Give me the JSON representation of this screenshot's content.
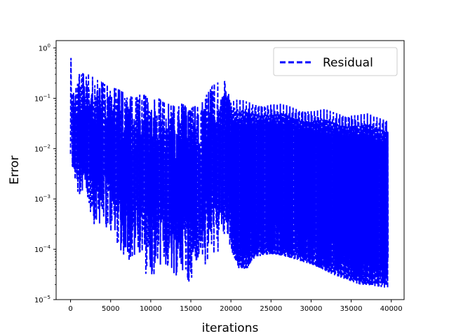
{
  "chart_data": {
    "type": "line",
    "title": "",
    "xlabel": "iterations",
    "ylabel": "Error",
    "yscale": "log",
    "xlim": [
      -1800,
      41600
    ],
    "ylim": [
      1e-05,
      1.4
    ],
    "x_ticks": [
      0,
      5000,
      10000,
      15000,
      20000,
      25000,
      30000,
      35000,
      40000
    ],
    "x_tick_labels": [
      "0",
      "5000",
      "10000",
      "15000",
      "20000",
      "25000",
      "30000",
      "35000",
      "40000"
    ],
    "y_ticks": [
      1e-05,
      0.0001,
      0.001,
      0.01,
      0.1,
      1
    ],
    "y_tick_labels": [
      {
        "base": "10",
        "exp": "−5"
      },
      {
        "base": "10",
        "exp": "−4"
      },
      {
        "base": "10",
        "exp": "−3"
      },
      {
        "base": "10",
        "exp": "−2"
      },
      {
        "base": "10",
        "exp": "−1"
      },
      {
        "base": "10",
        "exp": "0"
      }
    ],
    "grid": false,
    "legend_position": "top-right",
    "series": [
      {
        "name": "Residual",
        "color": "#0000ff",
        "linestyle": "dashed",
        "x_range": [
          0,
          39600
        ],
        "upper_envelope": [
          [
            0,
            1.0
          ],
          [
            200,
            0.2
          ],
          [
            500,
            0.12
          ],
          [
            1000,
            0.3
          ],
          [
            2000,
            0.33
          ],
          [
            3000,
            0.25
          ],
          [
            4000,
            0.2
          ],
          [
            5000,
            0.17
          ],
          [
            6000,
            0.15
          ],
          [
            7000,
            0.12
          ],
          [
            8000,
            0.1
          ],
          [
            9000,
            0.13
          ],
          [
            10000,
            0.09
          ],
          [
            11000,
            0.1
          ],
          [
            12000,
            0.08
          ],
          [
            13000,
            0.07
          ],
          [
            14000,
            0.08
          ],
          [
            15000,
            0.07
          ],
          [
            16000,
            0.07
          ],
          [
            17000,
            0.12
          ],
          [
            18000,
            0.2
          ],
          [
            19000,
            0.27
          ],
          [
            20000,
            0.1
          ],
          [
            25000,
            0.085
          ],
          [
            30000,
            0.065
          ],
          [
            35000,
            0.055
          ],
          [
            39600,
            0.045
          ]
        ],
        "lower_envelope": [
          [
            0,
            0.004
          ],
          [
            300,
            0.003
          ],
          [
            500,
            0.002
          ],
          [
            1000,
            0.001
          ],
          [
            2000,
            0.0005
          ],
          [
            3000,
            0.0003
          ],
          [
            4000,
            0.0003
          ],
          [
            5000,
            0.0002
          ],
          [
            6000,
            0.0001
          ],
          [
            7000,
            6e-05
          ],
          [
            8000,
            5e-05
          ],
          [
            9000,
            4e-05
          ],
          [
            10000,
            2e-05
          ],
          [
            11000,
            5e-05
          ],
          [
            12000,
            4e-05
          ],
          [
            13000,
            3e-05
          ],
          [
            14000,
            3e-05
          ],
          [
            15000,
            2e-05
          ],
          [
            16000,
            4e-05
          ],
          [
            17000,
            5e-05
          ],
          [
            18000,
            8e-05
          ],
          [
            19000,
            0.0001
          ],
          [
            20000,
            0.0001
          ],
          [
            21000,
            4e-05
          ],
          [
            22000,
            4e-05
          ],
          [
            23000,
            7e-05
          ],
          [
            25000,
            8e-05
          ],
          [
            27000,
            7e-05
          ],
          [
            30000,
            5e-05
          ],
          [
            33000,
            3e-05
          ],
          [
            36000,
            2e-05
          ],
          [
            39600,
            1.7e-05
          ]
        ]
      }
    ]
  }
}
